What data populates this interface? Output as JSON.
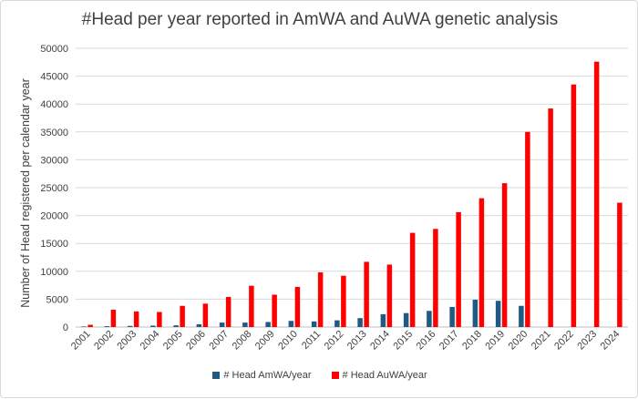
{
  "chart_data": {
    "type": "bar",
    "title": "#Head per year reported in AmWA and AuWA genetic analysis",
    "xlabel": "",
    "ylabel": "Number of Head registered per calendar year",
    "ylim": [
      0,
      50000
    ],
    "yticks": [
      0,
      5000,
      10000,
      15000,
      20000,
      25000,
      30000,
      35000,
      40000,
      45000,
      50000
    ],
    "categories": [
      "2001",
      "2002",
      "2003",
      "2004",
      "2005",
      "2006",
      "2007",
      "2008",
      "2009",
      "2010",
      "2011",
      "2012",
      "2013",
      "2014",
      "2015",
      "2016",
      "2017",
      "2018",
      "2019",
      "2020",
      "2021",
      "2022",
      "2023",
      "2024"
    ],
    "grid": true,
    "legend_position": "bottom",
    "series": [
      {
        "name": "# Head AmWA/year",
        "color": "#1f5a82",
        "values": [
          100,
          150,
          200,
          250,
          300,
          500,
          800,
          800,
          900,
          1100,
          1000,
          1200,
          1600,
          2300,
          2500,
          2900,
          3600,
          4900,
          4700,
          3800,
          null,
          null,
          null,
          null
        ]
      },
      {
        "name": "# Head AuWA/year",
        "color": "#ff0000",
        "values": [
          400,
          3100,
          2800,
          2700,
          3800,
          4200,
          5400,
          7400,
          5800,
          7200,
          9800,
          9200,
          11700,
          11200,
          16900,
          17600,
          20600,
          23100,
          25800,
          35000,
          39200,
          43500,
          47600,
          22300
        ]
      }
    ]
  }
}
